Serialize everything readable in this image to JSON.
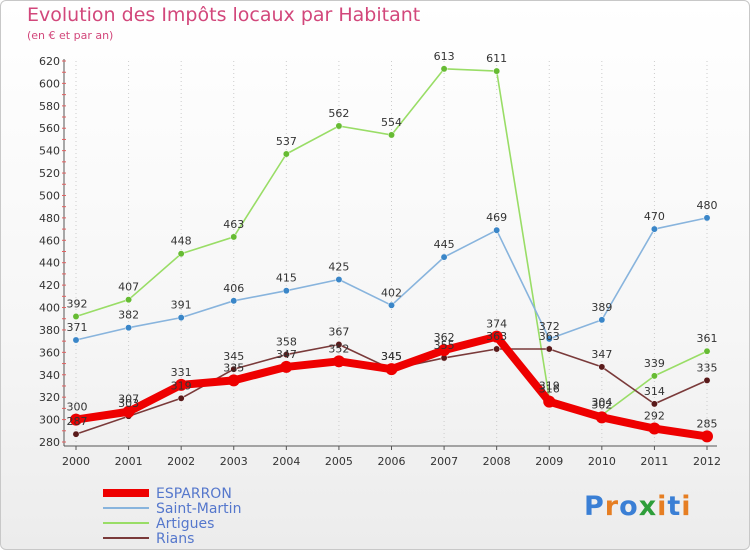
{
  "title": "Evolution des Impôts locaux par Habitant",
  "subtitle": "(en € et par an)",
  "logo": {
    "text": "Proxiti",
    "letters": [
      "P",
      "r",
      "o",
      "x",
      "i",
      "t",
      "i"
    ],
    "colors": [
      "#3a7fd5",
      "#e67e22",
      "#3a7fd5",
      "#2e9e3a",
      "#e67e22",
      "#3a7fd5",
      "#e67e22"
    ]
  },
  "chart_data": {
    "type": "line",
    "title": "Evolution des Impôts locaux par Habitant",
    "subtitle": "(en € et par an)",
    "xlabel": "",
    "ylabel": "",
    "x": [
      2000,
      2001,
      2002,
      2003,
      2004,
      2005,
      2006,
      2007,
      2008,
      2009,
      2010,
      2011,
      2012
    ],
    "ylim": [
      280,
      620
    ],
    "yticks": [
      280,
      300,
      320,
      340,
      360,
      380,
      400,
      420,
      440,
      460,
      480,
      500,
      520,
      540,
      560,
      580,
      600,
      620
    ],
    "grid": "vertical dotted",
    "legend_position": "bottom-left",
    "series": [
      {
        "name": "Artigues",
        "color": "#99dd66",
        "marker": "#66bb33",
        "values": [
          392,
          407,
          448,
          463,
          537,
          562,
          554,
          613,
          611,
          319,
          304,
          339,
          361
        ]
      },
      {
        "name": "Saint-Martin",
        "color": "#88b4dd",
        "marker": "#3a86c8",
        "values": [
          371,
          382,
          391,
          406,
          415,
          425,
          402,
          445,
          469,
          372,
          389,
          470,
          480
        ]
      },
      {
        "name": "Rians",
        "color": "#7a3a3a",
        "marker": "#5a1a1a",
        "values": [
          287,
          303,
          319,
          345,
          358,
          367,
          345,
          355,
          363,
          363,
          347,
          314,
          335
        ]
      },
      {
        "name": "ESPARRON",
        "color": "#ee0000",
        "marker": "#ee0000",
        "values": [
          300,
          307,
          331,
          335,
          347,
          352,
          345,
          362,
          374,
          316,
          302,
          292,
          285
        ]
      }
    ],
    "legend_order": [
      "ESPARRON",
      "Saint-Martin",
      "Artigues",
      "Rians"
    ]
  }
}
